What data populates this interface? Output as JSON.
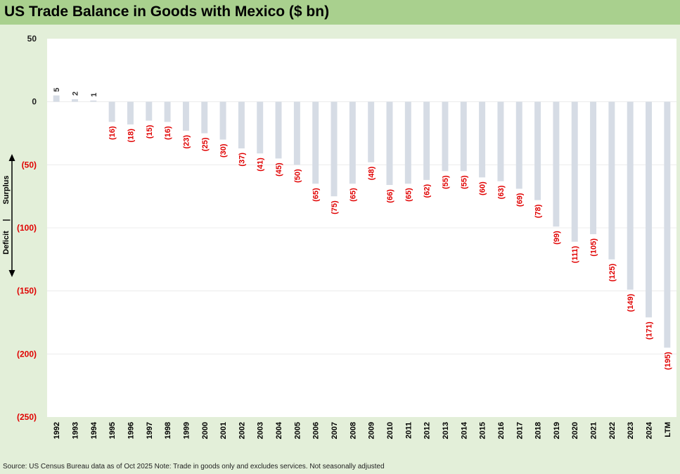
{
  "title": "US Trade Balance in Goods with Mexico ($ bn)",
  "source": "Source: US Census Bureau data as of Oct 2025 Note: Trade in goods only and excludes services. Not seasonally adjusted",
  "side_labels": {
    "surplus": "Surplus",
    "deficit": "Deficit",
    "separator": "|"
  },
  "colors": {
    "bar": "#d6dce5",
    "negative_text": "#e00000",
    "positive_text": "#333333",
    "header": "#a9d08e",
    "background": "#e3efd9"
  },
  "chart_data": {
    "type": "bar",
    "title": "US Trade Balance in Goods with Mexico ($ bn)",
    "xlabel": "",
    "ylabel": "",
    "ylim": [
      -250,
      50
    ],
    "yticks": [
      50,
      0,
      -50,
      -100,
      -150,
      -200,
      -250
    ],
    "ytick_labels": [
      "50",
      "0",
      "(50)",
      "(100)",
      "(150)",
      "(200)",
      "(250)"
    ],
    "grid": true,
    "categories": [
      "1992",
      "1993",
      "1994",
      "1995",
      "1996",
      "1997",
      "1998",
      "1999",
      "2000",
      "2001",
      "2002",
      "2003",
      "2004",
      "2005",
      "2006",
      "2007",
      "2008",
      "2009",
      "2010",
      "2011",
      "2012",
      "2013",
      "2014",
      "2015",
      "2016",
      "2017",
      "2018",
      "2019",
      "2020",
      "2021",
      "2022",
      "2023",
      "2024",
      "LTM"
    ],
    "values": [
      5,
      2,
      1,
      -16,
      -18,
      -15,
      -16,
      -23,
      -25,
      -30,
      -37,
      -41,
      -45,
      -50,
      -65,
      -75,
      -65,
      -48,
      -66,
      -65,
      -62,
      -55,
      -55,
      -60,
      -63,
      -69,
      -78,
      -99,
      -111,
      -105,
      -125,
      -149,
      -171,
      -195
    ],
    "data_labels": [
      "5",
      "2",
      "1",
      "(16)",
      "(18)",
      "(15)",
      "(16)",
      "(23)",
      "(25)",
      "(30)",
      "(37)",
      "(41)",
      "(45)",
      "(50)",
      "(65)",
      "(75)",
      "(65)",
      "(48)",
      "(66)",
      "(65)",
      "(62)",
      "(55)",
      "(55)",
      "(60)",
      "(63)",
      "(69)",
      "(78)",
      "(99)",
      "(111)",
      "(105)",
      "(125)",
      "(149)",
      "(171)",
      "(195)"
    ]
  }
}
